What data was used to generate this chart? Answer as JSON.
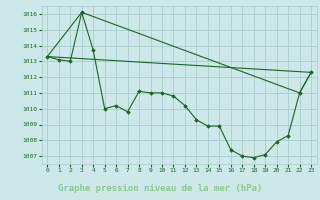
{
  "xlabel": "Graphe pression niveau de la mer (hPa)",
  "bg_color": "#cce8e8",
  "grid_color": "#aacccc",
  "line_color": "#1a6620",
  "marker_color": "#1a6620",
  "label_bg_color": "#336633",
  "label_text_color": "#88cc88",
  "ylim": [
    1006.5,
    1016.5
  ],
  "xlim": [
    -0.5,
    23.5
  ],
  "yticks": [
    1007,
    1008,
    1009,
    1010,
    1011,
    1012,
    1013,
    1014,
    1015,
    1016
  ],
  "xticks": [
    0,
    1,
    2,
    3,
    4,
    5,
    6,
    7,
    8,
    9,
    10,
    11,
    12,
    13,
    14,
    15,
    16,
    17,
    18,
    19,
    20,
    21,
    22,
    23
  ],
  "series0_x": [
    0,
    1,
    2,
    3,
    4,
    5,
    6,
    7,
    8,
    9,
    10,
    11,
    12,
    13,
    14,
    15,
    16,
    17,
    18,
    19,
    20,
    21,
    22,
    23
  ],
  "series0_y": [
    1013.3,
    1013.1,
    1013.0,
    1016.1,
    1013.7,
    1010.0,
    1010.2,
    1009.8,
    1011.1,
    1011.0,
    1011.0,
    1010.8,
    1010.2,
    1009.3,
    1008.9,
    1008.9,
    1007.4,
    1007.0,
    1006.9,
    1007.1,
    1007.9,
    1008.3,
    1011.0,
    1012.3
  ],
  "series1_x": [
    0,
    3,
    22,
    23
  ],
  "series1_y": [
    1013.3,
    1016.1,
    1011.0,
    1012.3
  ],
  "series2_x": [
    0,
    23
  ],
  "series2_y": [
    1013.3,
    1012.3
  ]
}
